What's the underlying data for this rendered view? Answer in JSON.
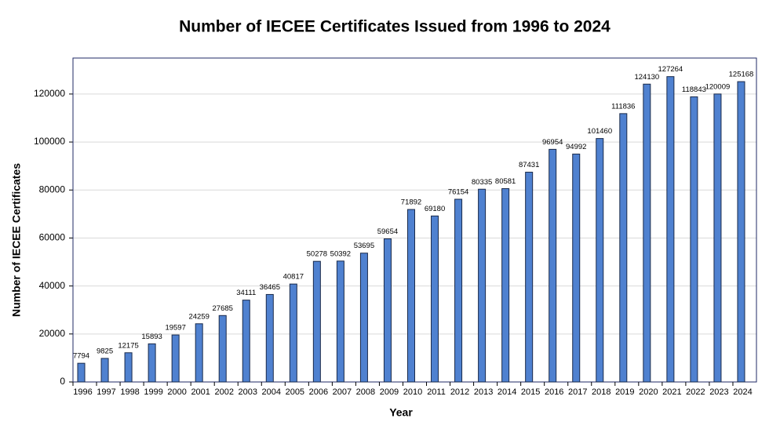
{
  "chart_data": {
    "type": "bar",
    "title": "Number of IECEE Certificates Issued from 1996 to 2024",
    "x_label": "Year",
    "y_label": "Number of IECEE Certificates",
    "categories": [
      "1996",
      "1997",
      "1998",
      "1999",
      "2000",
      "2001",
      "2002",
      "2003",
      "2004",
      "2005",
      "2006",
      "2007",
      "2008",
      "2009",
      "2010",
      "2011",
      "2012",
      "2013",
      "2014",
      "2015",
      "2016",
      "2017",
      "2018",
      "2019",
      "2020",
      "2021",
      "2022",
      "2023",
      "2024"
    ],
    "values": [
      7794,
      9825,
      12175,
      15893,
      19597,
      24259,
      27685,
      34111,
      36465,
      40817,
      50278,
      50392,
      53695,
      59654,
      71892,
      69180,
      76154,
      80335,
      80581,
      87431,
      96954,
      94992,
      101460,
      111836,
      124130,
      127264,
      118843,
      120009,
      125168
    ],
    "color": "#4f81d0",
    "ylim": [
      0,
      135000
    ],
    "yticks": [
      0,
      20000,
      40000,
      60000,
      80000,
      100000,
      120000
    ],
    "grid": true
  }
}
